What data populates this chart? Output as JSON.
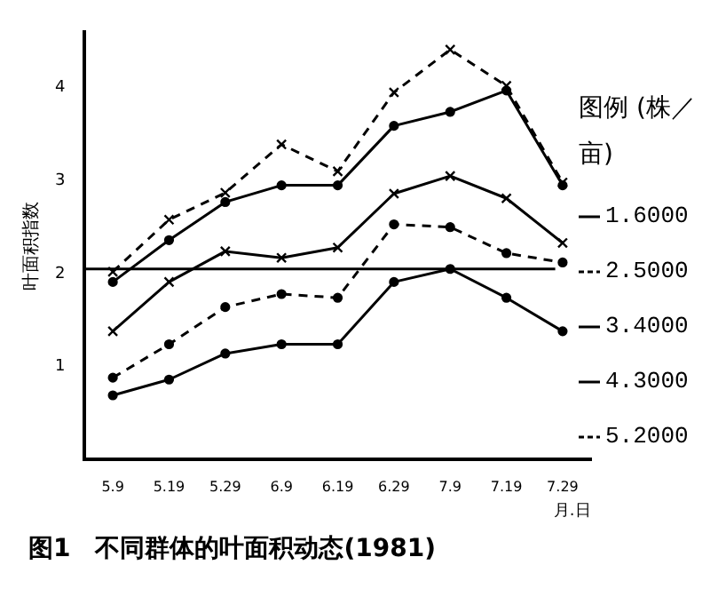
{
  "chart_data": {
    "type": "line",
    "title": "图1　不同群体的叶面积动态(1981)",
    "ylabel": "叶面积指数",
    "xlabel": "月.日",
    "legend_title": "图例 (株／亩)",
    "legend": "right",
    "grid": false,
    "categories": [
      "5.9",
      "5.19",
      "5.29",
      "6.9",
      "6.19",
      "6.29",
      "7.9",
      "7.19",
      "7.29"
    ],
    "ylim": [
      0,
      4.6
    ],
    "yticks": [
      1,
      2,
      3,
      4
    ],
    "ref_lines": [
      {
        "axis": "y",
        "value": 2.05
      }
    ],
    "series": [
      {
        "name": "1.6000",
        "color": "#000000",
        "marker": "circle",
        "line_style": "solid",
        "values": [
          0.69,
          0.86,
          1.14,
          1.24,
          1.24,
          1.91,
          2.05,
          1.74,
          1.38
        ]
      },
      {
        "name": "2.5000",
        "color": "#000000",
        "marker": "circle",
        "line_style": "dashed",
        "values": [
          0.88,
          1.24,
          1.64,
          1.78,
          1.74,
          2.53,
          2.5,
          2.22,
          2.12
        ]
      },
      {
        "name": "3.4000",
        "color": "#000000",
        "marker": "cross",
        "line_style": "solid",
        "values": [
          1.38,
          1.91,
          2.24,
          2.17,
          2.28,
          2.86,
          3.05,
          2.81,
          2.33
        ]
      },
      {
        "name": "4.3000",
        "color": "#000000",
        "marker": "circle",
        "line_style": "solid",
        "values": [
          1.91,
          2.36,
          2.77,
          2.95,
          2.95,
          3.59,
          3.74,
          3.97,
          2.95
        ]
      },
      {
        "name": "5.2000",
        "color": "#000000",
        "marker": "cross",
        "line_style": "dashed",
        "values": [
          2.02,
          2.58,
          2.87,
          3.39,
          3.1,
          3.95,
          4.41,
          4.02,
          2.98
        ]
      }
    ]
  }
}
